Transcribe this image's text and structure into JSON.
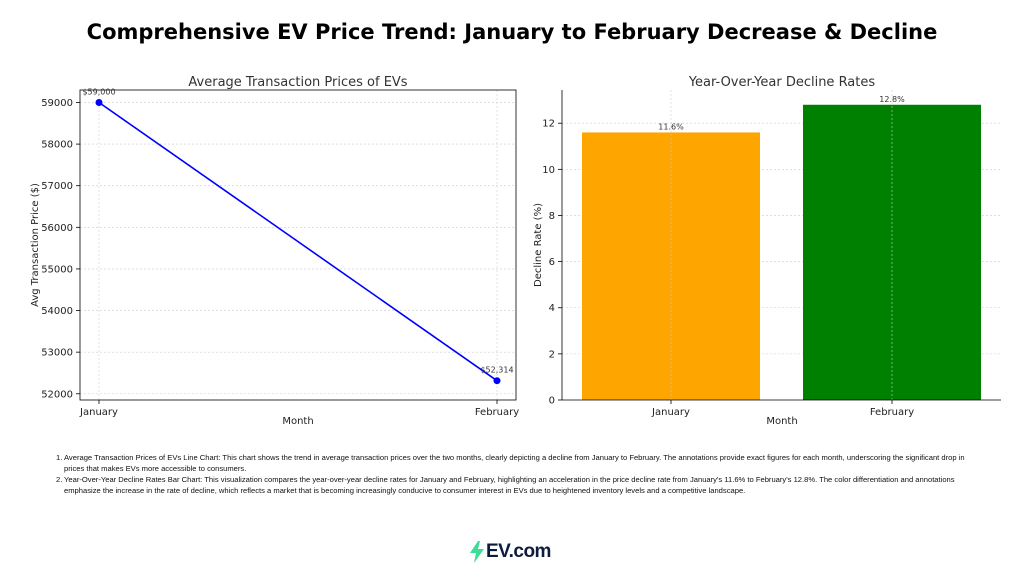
{
  "page_title": "Comprehensive EV Price Trend: January to February Decrease & Decline",
  "chart_data": [
    {
      "type": "line",
      "title": "Average Transaction Prices of EVs",
      "xlabel": "Month",
      "ylabel": "Avg Transaction Price ($)",
      "categories": [
        "January",
        "February"
      ],
      "values": [
        59000,
        52314
      ],
      "annotations": [
        "$59,000",
        "$52,314"
      ],
      "ylim": [
        51850,
        59300
      ],
      "yticks": [
        52000,
        53000,
        54000,
        55000,
        56000,
        57000,
        58000,
        59000
      ],
      "grid": true,
      "color": "#0000ff"
    },
    {
      "type": "bar",
      "title": "Year-Over-Year Decline Rates",
      "xlabel": "Month",
      "ylabel": "Decline Rate (%)",
      "categories": [
        "January",
        "February"
      ],
      "values": [
        11.6,
        12.8
      ],
      "annotations": [
        "11.6%",
        "12.8%"
      ],
      "colors": [
        "#ffa500",
        "#008000"
      ],
      "ylim": [
        0,
        13.44
      ],
      "yticks": [
        0,
        2,
        4,
        6,
        8,
        10,
        12
      ],
      "grid": true
    }
  ],
  "notes": [
    {
      "num": "1.",
      "text": "Average Transaction Prices of EVs Line Chart: This chart shows the trend in average transaction prices over the two months, clearly depicting a decline from January to February. The annotations provide exact figures for each month, underscoring the significant drop in prices that makes EVs more accessible to consumers."
    },
    {
      "num": "2.",
      "text": "Year-Over-Year Decline Rates Bar Chart: This visualization compares the year-over-year decline rates for January and February, highlighting an acceleration in the price decline rate from January's 11.6% to February's 12.8%. The color differentiation and annotations emphasize the increase in the rate of decline, which reflects a market that is becoming increasingly conducive to consumer interest in EVs due to heightened inventory levels and a competitive landscape."
    }
  ],
  "logo": {
    "text": "EV.com",
    "accent": "#3ddc97",
    "brand": "#0d1b3e"
  }
}
